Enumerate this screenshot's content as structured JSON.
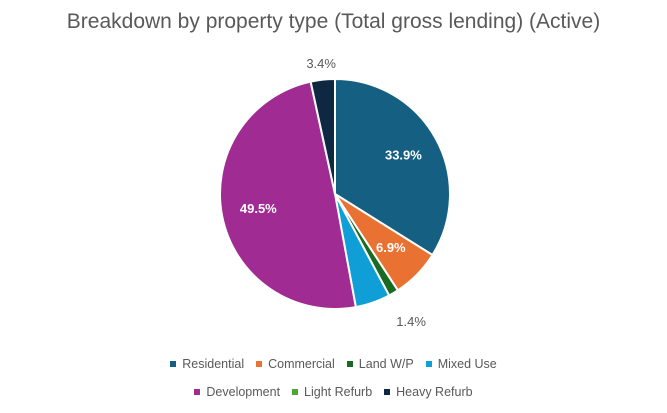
{
  "chart_data": {
    "type": "pie",
    "title": "Breakdown by property type  (Total gross lending) (Active)",
    "categories": [
      "Residential",
      "Commercial",
      "Land W/P",
      "Mixed Use",
      "Development",
      "Light Refurb",
      "Heavy Refurb"
    ],
    "values": [
      33.9,
      6.9,
      1.4,
      4.9,
      49.5,
      0.0,
      3.4
    ],
    "data_labels": [
      "33.9%",
      "6.9%",
      "1.4%",
      "",
      "49.5%",
      "",
      "3.4%"
    ],
    "colors": [
      "#156082",
      "#e97132",
      "#196b24",
      "#0f9ed5",
      "#a02b93",
      "#4ea72e",
      "#0e2841"
    ],
    "legend_position": "bottom"
  }
}
